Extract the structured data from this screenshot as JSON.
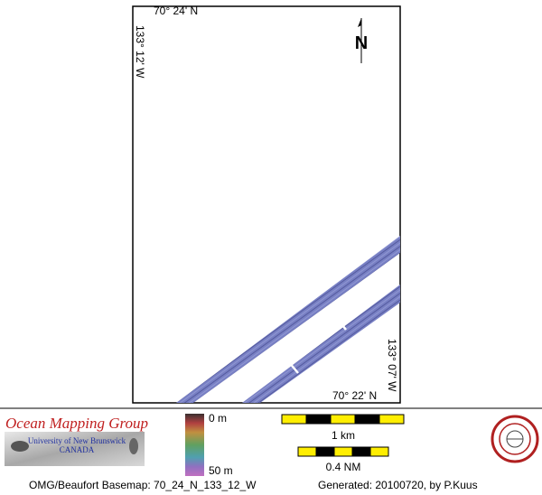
{
  "map": {
    "top_label": "70° 24' N",
    "left_label": "133° 12' W",
    "north": "N",
    "right_label": "133° 07' W",
    "bottom_label": "70° 22' N"
  },
  "logo": {
    "title": "Ocean Mapping Group",
    "university": "University of New Brunswick",
    "country": "CANADA"
  },
  "legend": {
    "depth_min": "0 m",
    "depth_max": "50 m",
    "scale_km": "1 km",
    "scale_nm": "0.4 NM"
  },
  "footer": {
    "basemap": "OMG/Beaufort Basemap: 70_24_N_133_12_W",
    "generated": "Generated: 20100720, by P.Kuus"
  }
}
